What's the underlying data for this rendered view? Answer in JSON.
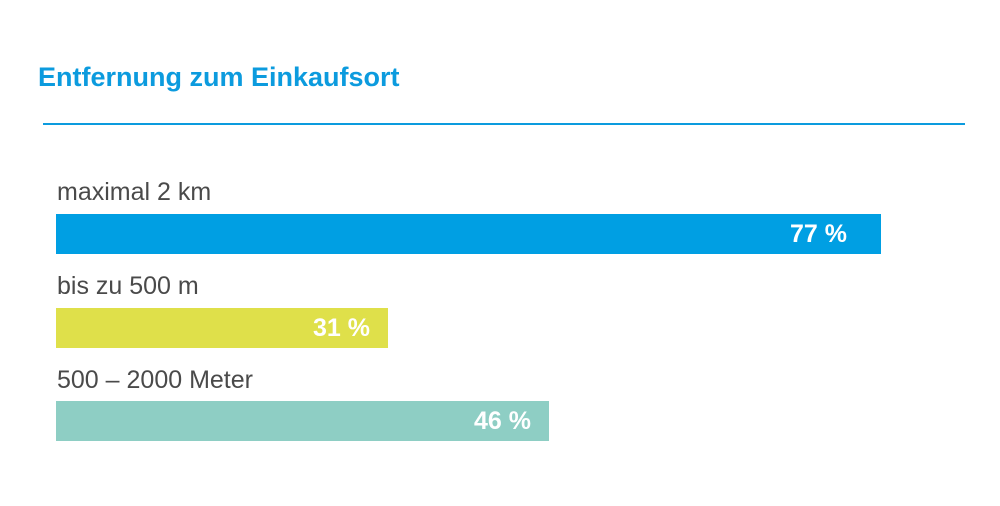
{
  "chart_data": {
    "type": "bar",
    "orientation": "horizontal",
    "title": "Entfernung zum Einkaufsort",
    "categories": [
      "maximal 2 km",
      "bis zu 500 m",
      "500 – 2000 Meter"
    ],
    "values": [
      77,
      31,
      46
    ],
    "value_labels": [
      "77 %",
      "31 %",
      "46 %"
    ],
    "colors": [
      "#009fe3",
      "#dfe04a",
      "#8ecec4"
    ],
    "xlim": [
      0,
      100
    ],
    "grid": false
  },
  "colors": {
    "title": "#0c9bde",
    "rule": "#0c9bde",
    "label_text": "#4a4a4a",
    "value_text": "#ffffff"
  }
}
